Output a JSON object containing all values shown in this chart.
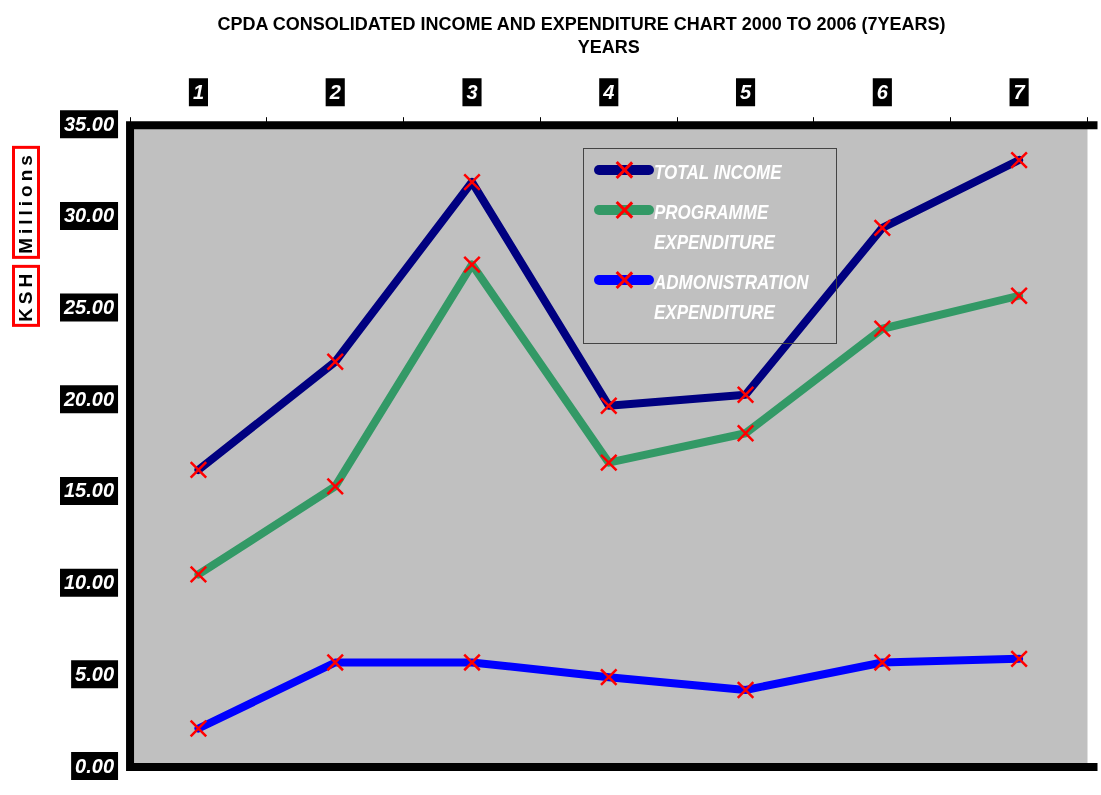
{
  "chart_data": {
    "type": "line",
    "title": "CPDA CONSOLIDATED INCOME AND EXPENDITURE CHART 2000 TO 2006 (7YEARS)",
    "xlabel": "YEARS",
    "ylabel": "KSH Millions",
    "categories": [
      "1",
      "2",
      "3",
      "4",
      "5",
      "6",
      "7"
    ],
    "series": [
      {
        "name": "TOTAL INCOME",
        "color": "#000080",
        "values": [
          16.2,
          22.1,
          31.9,
          19.7,
          20.3,
          29.4,
          33.1
        ]
      },
      {
        "name": "PROGRAMME EXPENDITURE",
        "color": "#339966",
        "values": [
          10.5,
          15.3,
          27.4,
          16.6,
          18.2,
          23.9,
          25.7
        ]
      },
      {
        "name": "ADMONISTRATION EXPENDITURE",
        "color": "#0000ff",
        "values": [
          2.1,
          5.7,
          5.7,
          4.9,
          4.2,
          5.7,
          5.9
        ]
      }
    ],
    "ylim": [
      0,
      35
    ],
    "yticks": [
      {
        "value": 0,
        "label": "0.00"
      },
      {
        "value": 5,
        "label": "5.00"
      },
      {
        "value": 10,
        "label": "10.00"
      },
      {
        "value": 15,
        "label": "15.00"
      },
      {
        "value": 20,
        "label": "20.00"
      },
      {
        "value": 25,
        "label": "25.00"
      },
      {
        "value": 30,
        "label": "30.00"
      },
      {
        "value": 35,
        "label": "35.00"
      }
    ],
    "grid": false,
    "legend": "top",
    "marker": "cross",
    "line_style": "solid"
  }
}
